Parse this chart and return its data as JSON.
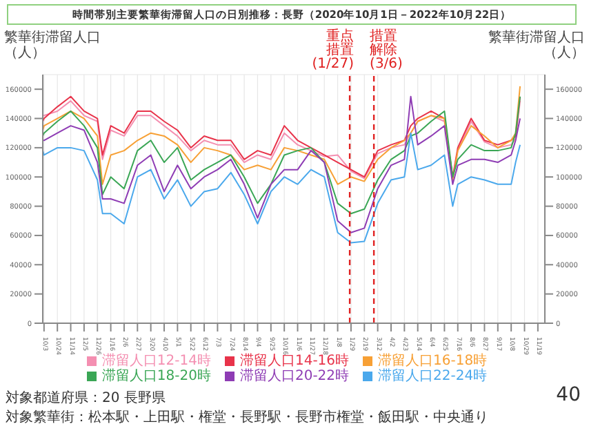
{
  "chart_data": {
    "type": "line",
    "title": "時間帯別主要繁華街滞留人口の日別推移：長野（2020年10月1日－2022年10月22日）",
    "ylabel": "繁華街滞留人口（人）",
    "y2label": "繁華街滞留人口（人）",
    "x": [
      "2020-10-01",
      "2020-10-03",
      "2020-10-24",
      "2020-11-14",
      "2020-12-05",
      "2020-12-26",
      "2021-01-03",
      "2021-01-16",
      "2021-02-06",
      "2021-02-27",
      "2021-03-20",
      "2021-04-10",
      "2021-05-01",
      "2021-05-22",
      "2021-06-12",
      "2021-07-03",
      "2021-07-24",
      "2021-08-14",
      "2021-09-04",
      "2021-09-25",
      "2021-10-16",
      "2021-11-06",
      "2021-11-27",
      "2021-12-18",
      "2022-01-08",
      "2022-01-29",
      "2022-02-19",
      "2022-03-12",
      "2022-04-02",
      "2022-04-23",
      "2022-05-03",
      "2022-05-14",
      "2022-06-04",
      "2022-06-25",
      "2022-07-08",
      "2022-07-16",
      "2022-08-06",
      "2022-08-27",
      "2022-09-17",
      "2022-10-08",
      "2022-10-15",
      "2022-10-22"
    ],
    "series": [
      {
        "name": "滞留人口12-14時",
        "color": "#f48fb1",
        "values": [
          142000,
          142000,
          145000,
          152000,
          142000,
          138000,
          112000,
          132000,
          128000,
          142000,
          142000,
          135000,
          128000,
          118000,
          125000,
          122000,
          122000,
          110000,
          115000,
          112000,
          130000,
          122000,
          118000,
          114000,
          115000,
          104000,
          99000,
          116000,
          120000,
          122000,
          130000,
          138000,
          142000,
          138000,
          100000,
          118000,
          138000,
          124000,
          120000,
          122000,
          126000,
          152000
        ]
      },
      {
        "name": "滞留人口14-16時",
        "color": "#e8334a",
        "values": [
          138000,
          140000,
          148000,
          155000,
          145000,
          140000,
          115000,
          135000,
          130000,
          145000,
          145000,
          138000,
          132000,
          120000,
          128000,
          125000,
          125000,
          112000,
          118000,
          115000,
          135000,
          125000,
          120000,
          115000,
          110000,
          105000,
          100000,
          118000,
          122000,
          125000,
          135000,
          140000,
          145000,
          140000,
          100000,
          120000,
          140000,
          125000,
          122000,
          125000,
          128000,
          155000
        ]
      },
      {
        "name": "滞留人口16-18時",
        "color": "#f7a035",
        "values": [
          132000,
          135000,
          140000,
          145000,
          140000,
          128000,
          95000,
          115000,
          118000,
          125000,
          130000,
          128000,
          122000,
          110000,
          120000,
          118000,
          115000,
          105000,
          108000,
          105000,
          120000,
          118000,
          115000,
          112000,
          95000,
          100000,
          97000,
          112000,
          120000,
          125000,
          130000,
          138000,
          142000,
          140000,
          98000,
          118000,
          135000,
          128000,
          120000,
          125000,
          130000,
          162000
        ]
      },
      {
        "name": "滞留人口18-20時",
        "color": "#3aa655",
        "values": [
          128000,
          130000,
          138000,
          145000,
          135000,
          120000,
          88000,
          100000,
          92000,
          118000,
          125000,
          110000,
          120000,
          98000,
          105000,
          110000,
          115000,
          100000,
          82000,
          95000,
          115000,
          118000,
          120000,
          110000,
          82000,
          75000,
          78000,
          98000,
          112000,
          118000,
          128000,
          130000,
          138000,
          145000,
          100000,
          112000,
          122000,
          118000,
          118000,
          120000,
          130000,
          155000
        ]
      },
      {
        "name": "滞留人口20-22時",
        "color": "#8e3cb4",
        "values": [
          125000,
          125000,
          130000,
          135000,
          132000,
          110000,
          85000,
          85000,
          82000,
          108000,
          115000,
          90000,
          108000,
          92000,
          100000,
          105000,
          112000,
          95000,
          72000,
          95000,
          105000,
          105000,
          118000,
          110000,
          70000,
          62000,
          65000,
          92000,
          108000,
          112000,
          155000,
          122000,
          128000,
          135000,
          95000,
          108000,
          112000,
          112000,
          110000,
          115000,
          125000,
          140000
        ]
      },
      {
        "name": "滞留人口22-24時",
        "color": "#4aa8ec",
        "values": [
          118000,
          115000,
          120000,
          120000,
          118000,
          98000,
          75000,
          75000,
          68000,
          100000,
          105000,
          85000,
          98000,
          80000,
          90000,
          92000,
          103000,
          88000,
          68000,
          90000,
          100000,
          95000,
          105000,
          100000,
          62000,
          55000,
          56000,
          82000,
          98000,
          100000,
          130000,
          105000,
          108000,
          115000,
          80000,
          95000,
          100000,
          98000,
          95000,
          95000,
          110000,
          122000
        ]
      }
    ],
    "xlim": [
      "2020-10-01",
      "2022-11-30"
    ],
    "xticks": [
      {
        "value": "2020-10-03",
        "label": "10/3"
      },
      {
        "value": "2020-10-24",
        "label": "10/24"
      },
      {
        "value": "2020-11-14",
        "label": "11/14"
      },
      {
        "value": "2020-12-05",
        "label": "12/5"
      },
      {
        "value": "2020-12-26",
        "label": "12/26"
      },
      {
        "value": "2021-01-16",
        "label": "1/16"
      },
      {
        "value": "2021-02-06",
        "label": "2/6"
      },
      {
        "value": "2021-02-27",
        "label": "2/27"
      },
      {
        "value": "2021-03-20",
        "label": "3/20"
      },
      {
        "value": "2021-04-10",
        "label": "4/10"
      },
      {
        "value": "2021-05-01",
        "label": "5/1"
      },
      {
        "value": "2021-05-22",
        "label": "5/22"
      },
      {
        "value": "2021-06-12",
        "label": "6/12"
      },
      {
        "value": "2021-07-03",
        "label": "7/3"
      },
      {
        "value": "2021-07-24",
        "label": "7/24"
      },
      {
        "value": "2021-08-14",
        "label": "8/14"
      },
      {
        "value": "2021-09-04",
        "label": "9/4"
      },
      {
        "value": "2021-09-25",
        "label": "9/25"
      },
      {
        "value": "2021-10-16",
        "label": "10/16"
      },
      {
        "value": "2021-11-06",
        "label": "11/6"
      },
      {
        "value": "2021-11-27",
        "label": "11/27"
      },
      {
        "value": "2021-12-18",
        "label": "12/18"
      },
      {
        "value": "2022-01-08",
        "label": "1/8"
      },
      {
        "value": "2022-01-29",
        "label": "1/29"
      },
      {
        "value": "2022-02-19",
        "label": "2/19"
      },
      {
        "value": "2022-03-12",
        "label": "3/12"
      },
      {
        "value": "2022-04-02",
        "label": "4/2"
      },
      {
        "value": "2022-04-23",
        "label": "4/23"
      },
      {
        "value": "2022-05-14",
        "label": "5/14"
      },
      {
        "value": "2022-06-04",
        "label": "6/4"
      },
      {
        "value": "2022-06-25",
        "label": "6/25"
      },
      {
        "value": "2022-07-16",
        "label": "7/16"
      },
      {
        "value": "2022-08-06",
        "label": "8/6"
      },
      {
        "value": "2022-08-27",
        "label": "8/27"
      },
      {
        "value": "2022-09-17",
        "label": "9/17"
      },
      {
        "value": "2022-10-08",
        "label": "10/8"
      },
      {
        "value": "2022-10-29",
        "label": "10/29"
      },
      {
        "value": "2022-11-19",
        "label": "11/19"
      }
    ],
    "ylim": [
      0,
      170000
    ],
    "yticks": [
      0,
      20000,
      40000,
      60000,
      80000,
      100000,
      120000,
      140000,
      160000
    ],
    "y2lim": [
      0,
      170000
    ],
    "y2ticks": [
      0,
      20000,
      40000,
      60000,
      80000,
      100000,
      120000,
      140000,
      160000
    ],
    "ref_lines": [
      {
        "axis": "x",
        "value": "2022-01-27",
        "label": "重点措置(1/27)",
        "color": "#e02020",
        "line_style": "dashed"
      },
      {
        "axis": "x",
        "value": "2022-03-06",
        "label": "措置解除(3/6)",
        "color": "#e02020",
        "line_style": "dashed"
      }
    ],
    "annotations": [
      "対象都道府県：20 長野県",
      "対象繁華街：松本駅・上田駅・権堂・長野駅・長野市権堂・飯田駅・中央通り",
      "40"
    ],
    "grid": true,
    "legend": "bottom",
    "line_style": "solid"
  }
}
